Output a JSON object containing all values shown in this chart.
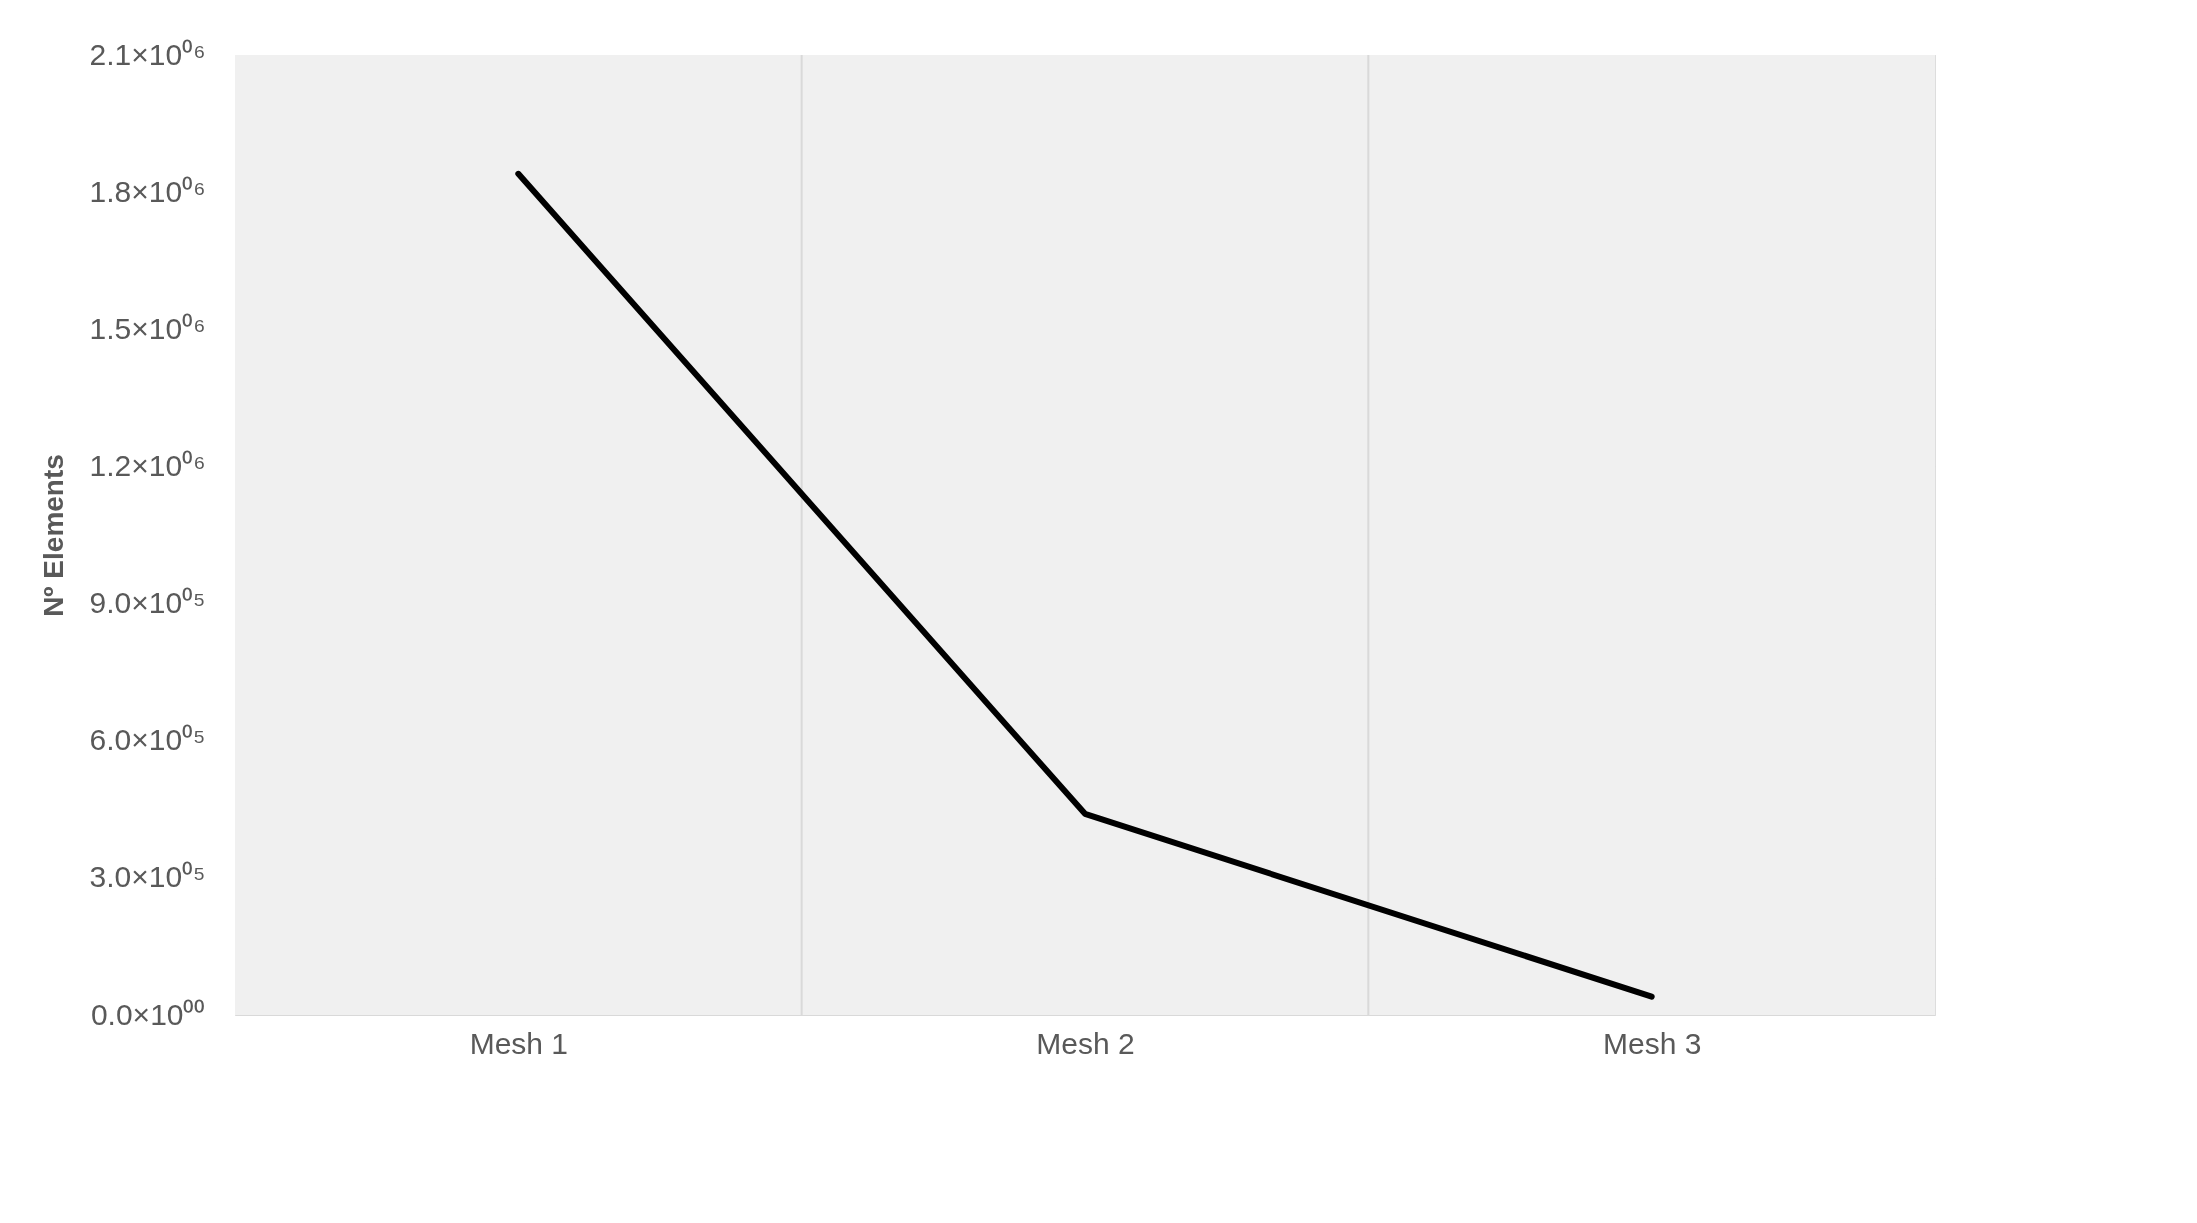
{
  "chart_data": {
    "type": "line",
    "ylabel": "Nº Elements",
    "categories": [
      "Mesh 1",
      "Mesh 2",
      "Mesh 3"
    ],
    "series": [
      {
        "color": "#000000",
        "values": [
          1840000,
          440000,
          40000
        ]
      }
    ],
    "ylim": [
      0,
      2100000
    ],
    "yticks": [
      {
        "value": 0,
        "label": "0.0×10⁰⁰"
      },
      {
        "value": 300000,
        "label": "3.0×10⁰⁵"
      },
      {
        "value": 600000,
        "label": "6.0×10⁰⁵"
      },
      {
        "value": 900000,
        "label": "9.0×10⁰⁵"
      },
      {
        "value": 1200000,
        "label": "1.2×10⁰⁶"
      },
      {
        "value": 1500000,
        "label": "1.5×10⁰⁶"
      },
      {
        "value": 1800000,
        "label": "1.8×10⁰⁶"
      },
      {
        "value": 2100000,
        "label": "2.1×10⁰⁶"
      }
    ],
    "grid": true,
    "marker": "none",
    "line_style": "solid"
  }
}
